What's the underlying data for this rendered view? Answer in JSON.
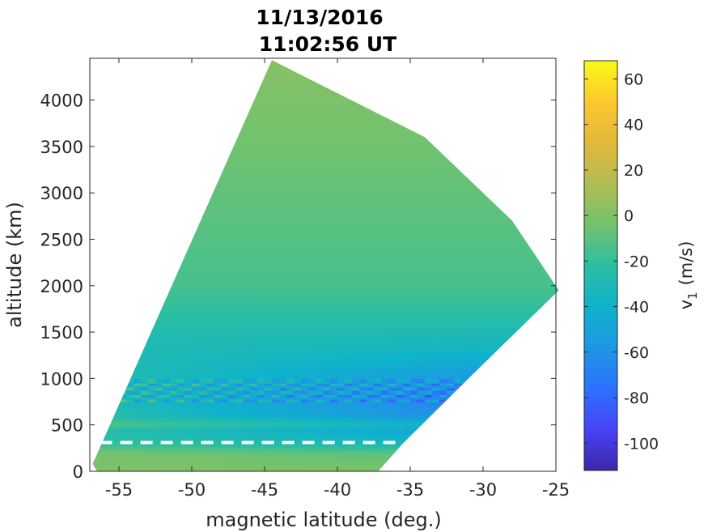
{
  "chart_data": {
    "type": "heatmap",
    "title": [
      "11/13/2016",
      "11:02:56 UT"
    ],
    "xlabel": "magnetic latitude (deg.)",
    "ylabel": "altitude (km)",
    "xlim": [
      -57,
      -25
    ],
    "ylim": [
      0,
      4450
    ],
    "xticks": [
      -55,
      -50,
      -45,
      -40,
      -35,
      -30,
      -25
    ],
    "yticks": [
      0,
      500,
      1000,
      1500,
      2000,
      2500,
      3000,
      3500,
      4000
    ],
    "colorbar": {
      "label": "v",
      "label_subscript": "1",
      "label_units": "(m/s)",
      "lim": [
        -112,
        68
      ],
      "ticks": [
        -100,
        -80,
        -60,
        -40,
        -20,
        0,
        20,
        40,
        60
      ],
      "colormap": [
        "#3e26a8",
        "#4743f8",
        "#2d71fe",
        "#1e97e3",
        "#0fb2cc",
        "#2bbfa1",
        "#72c26e",
        "#b1bd54",
        "#e2b83a",
        "#fdc82f",
        "#f9fb15"
      ]
    },
    "domain_boundary": [
      {
        "lat": -56.8,
        "alt": 80
      },
      {
        "lat": -44.5,
        "alt": 4430
      },
      {
        "lat": -34,
        "alt": 3600
      },
      {
        "lat": -28,
        "alt": 2700
      },
      {
        "lat": -24.8,
        "alt": 1950
      },
      {
        "lat": -31,
        "alt": 1000
      },
      {
        "lat": -35.5,
        "alt": 300
      },
      {
        "lat": -37.2,
        "alt": 0
      },
      {
        "lat": -56.5,
        "alt": 0
      }
    ],
    "velocity_profile": [
      {
        "alt": 0,
        "v": 0
      },
      {
        "alt": 200,
        "v": -5
      },
      {
        "alt": 300,
        "v": -25
      },
      {
        "alt": 450,
        "v": -32
      },
      {
        "alt": 500,
        "v": -18
      },
      {
        "alt": 600,
        "v": -35
      },
      {
        "alt": 800,
        "v": -40
      },
      {
        "alt": 1000,
        "v": -35
      },
      {
        "alt": 1500,
        "v": -28
      },
      {
        "alt": 2000,
        "v": -15
      },
      {
        "alt": 3000,
        "v": -8
      },
      {
        "alt": 4400,
        "v": 2
      }
    ],
    "eastward_gradient": {
      "per_degree_at_700km": -1.6
    },
    "oscillation_band": {
      "alt_range": [
        750,
        1000
      ],
      "amplitude": 25
    },
    "reference_line": {
      "alt": 310,
      "lat_range": [
        -56.3,
        -36
      ],
      "style": "dashed",
      "color": "#ffffff"
    }
  }
}
